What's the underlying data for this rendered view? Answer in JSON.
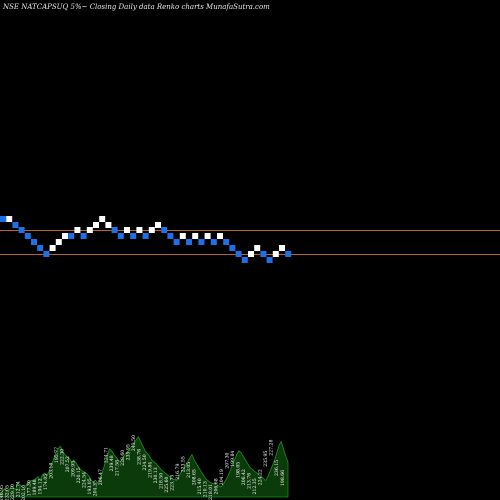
{
  "header": {
    "title": "NSE NATCAPSUQ 5%~  Closing Daily data  Renko  charts MunafaSutra.com"
  },
  "colors": {
    "background": "#000000",
    "up_brick": "#ffffff",
    "down_brick": "#1e6fe8",
    "reference_line": "#b5651d",
    "volume_fill": "#0b3a0b",
    "volume_edge": "#1f8f1f",
    "text": "#ffffff"
  },
  "chart_data": {
    "type": "renko",
    "grid": false,
    "reference_lines": [
      {
        "name": "upper",
        "y": 230
      },
      {
        "name": "lower",
        "y": 254
      }
    ],
    "bricks": [
      {
        "level": 219,
        "dir": "down"
      },
      {
        "level": 219,
        "dir": "up"
      },
      {
        "level": 225,
        "dir": "down"
      },
      {
        "level": 230,
        "dir": "down"
      },
      {
        "level": 236,
        "dir": "down"
      },
      {
        "level": 242,
        "dir": "down"
      },
      {
        "level": 248,
        "dir": "down"
      },
      {
        "level": 254,
        "dir": "down"
      },
      {
        "level": 248,
        "dir": "up"
      },
      {
        "level": 242,
        "dir": "up"
      },
      {
        "level": 236,
        "dir": "up"
      },
      {
        "level": 236,
        "dir": "down"
      },
      {
        "level": 230,
        "dir": "up"
      },
      {
        "level": 236,
        "dir": "down"
      },
      {
        "level": 230,
        "dir": "up"
      },
      {
        "level": 225,
        "dir": "up"
      },
      {
        "level": 219,
        "dir": "up"
      },
      {
        "level": 225,
        "dir": "up"
      },
      {
        "level": 230,
        "dir": "down"
      },
      {
        "level": 236,
        "dir": "down"
      },
      {
        "level": 230,
        "dir": "up"
      },
      {
        "level": 236,
        "dir": "down"
      },
      {
        "level": 230,
        "dir": "up"
      },
      {
        "level": 236,
        "dir": "down"
      },
      {
        "level": 230,
        "dir": "up"
      },
      {
        "level": 225,
        "dir": "up"
      },
      {
        "level": 230,
        "dir": "down"
      },
      {
        "level": 236,
        "dir": "down"
      },
      {
        "level": 242,
        "dir": "down"
      },
      {
        "level": 236,
        "dir": "up"
      },
      {
        "level": 242,
        "dir": "down"
      },
      {
        "level": 236,
        "dir": "up"
      },
      {
        "level": 242,
        "dir": "down"
      },
      {
        "level": 236,
        "dir": "up"
      },
      {
        "level": 242,
        "dir": "down"
      },
      {
        "level": 236,
        "dir": "up"
      },
      {
        "level": 242,
        "dir": "down"
      },
      {
        "level": 248,
        "dir": "down"
      },
      {
        "level": 254,
        "dir": "down"
      },
      {
        "level": 260,
        "dir": "down"
      },
      {
        "level": 254,
        "dir": "up"
      },
      {
        "level": 248,
        "dir": "up"
      },
      {
        "level": 254,
        "dir": "down"
      },
      {
        "level": 260,
        "dir": "down"
      },
      {
        "level": 254,
        "dir": "up"
      },
      {
        "level": 248,
        "dir": "up"
      },
      {
        "level": 254,
        "dir": "down"
      }
    ],
    "volume_labels": [
      "246.95",
      "232.05",
      "229.10",
      "212.74",
      "202.10",
      "177.30",
      "189.48",
      "194.12",
      "174.05",
      "203.18",
      "195.77",
      "222.30",
      "207.52",
      "209.95",
      "220.15",
      "224.54",
      "193.05",
      "204.35",
      "206.47",
      "224.71",
      "239.48",
      "217.58",
      "228.60",
      "235.95",
      "243.50",
      "238.76",
      "224.50",
      "219.84",
      "230.13",
      "218.50",
      "225.60",
      "223.75",
      "216.79",
      "223.55",
      "213.05",
      "208.65",
      "215.40",
      "210.13",
      "218.01",
      "206.68",
      "204.19",
      "207.30",
      "199.84",
      "198.05",
      "206.42",
      "213.76",
      "212.35",
      "224.22",
      "235.95",
      "227.28",
      "236.15"
    ],
    "volume_bottom_label": "198.66",
    "volume": [
      4,
      6,
      9,
      6,
      7,
      12,
      10,
      8,
      15,
      13,
      11,
      9,
      14,
      16,
      18,
      17,
      20,
      22,
      18,
      24,
      26,
      23,
      28,
      35,
      41,
      48,
      52,
      55,
      50,
      46,
      44,
      42,
      38,
      40,
      37,
      33,
      30,
      28,
      27,
      25,
      22,
      18,
      15,
      14,
      16,
      20,
      28,
      36,
      44,
      52,
      50,
      46,
      43,
      40,
      38,
      42,
      46,
      49,
      52,
      55,
      58,
      62,
      65,
      60,
      55,
      50,
      47,
      44,
      40,
      38,
      36,
      33,
      30,
      28,
      26,
      24,
      22,
      20,
      19,
      18,
      22,
      26,
      30,
      34,
      38,
      42,
      46,
      40,
      36,
      32,
      28,
      24,
      20,
      18,
      16,
      15,
      14,
      13,
      12,
      11,
      14,
      18,
      22,
      28,
      34,
      40,
      46,
      50,
      48,
      44,
      40,
      36,
      32,
      30,
      28,
      26,
      24,
      22,
      20,
      18,
      22,
      28,
      34,
      40,
      48,
      56,
      60,
      52,
      44,
      38
    ]
  }
}
